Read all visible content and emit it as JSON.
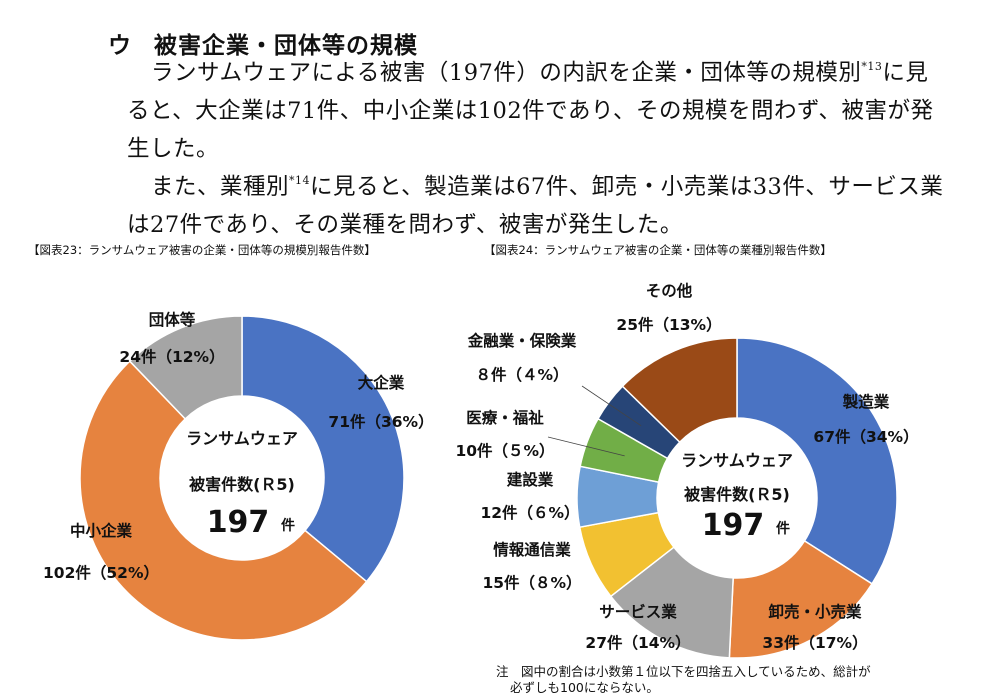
{
  "heading": {
    "mark": "ウ",
    "text": "被害企業・団体等の規模"
  },
  "paragraph_1": {
    "before_ref": "ランサムウェアによる被害（197件）の内訳を企業・団体等の規模別",
    "ref": "*13",
    "after_ref": "に見ると、大企業は71件、中小企業は102件であり、その規模を問わず、被害が発生した。"
  },
  "paragraph_2": {
    "before_ref": "また、業種別",
    "ref": "*14",
    "after_ref": "に見ると、製造業は67件、卸売・小売業は33件、サービス業は27件であり、その業種を問わず、被害が発生した。"
  },
  "chart_data": [
    {
      "type": "pie",
      "title": "【図表23：ランサムウェア被害の企業・団体等の規模別報告件数】",
      "center_lines": [
        "ランサムウェア",
        "被害件数(Ｒ5)"
      ],
      "center_total": "197",
      "center_unit": "件",
      "slices": [
        {
          "label": "大企業",
          "count": 71,
          "value_label": "71件（36%）",
          "color": "#4a73c3"
        },
        {
          "label": "中小企業",
          "count": 102,
          "value_label": "102件（52%）",
          "color": "#e6833f"
        },
        {
          "label": "団体等",
          "count": 24,
          "value_label": "24件（12%）",
          "color": "#a5a5a5"
        }
      ]
    },
    {
      "type": "pie",
      "title": "【図表24：ランサムウェア被害の企業・団体等の業種別報告件数】",
      "center_lines": [
        "ランサムウェア",
        "被害件数(Ｒ5)"
      ],
      "center_total": "197",
      "center_unit": "件",
      "slices": [
        {
          "label": "製造業",
          "count": 67,
          "value_label": "67件（34%）",
          "color": "#4a73c3"
        },
        {
          "label": "卸売・小売業",
          "count": 33,
          "value_label": "33件（17%）",
          "color": "#e6833f"
        },
        {
          "label": "サービス業",
          "count": 27,
          "value_label": "27件（14%）",
          "color": "#a5a5a5"
        },
        {
          "label": "情報通信業",
          "count": 15,
          "value_label": "15件（８%）",
          "color": "#f2c131"
        },
        {
          "label": "建設業",
          "count": 12,
          "value_label": "12件（６%）",
          "color": "#6e9fd6"
        },
        {
          "label": "医療・福祉",
          "count": 10,
          "value_label": "10件（５%）",
          "color": "#71ae47"
        },
        {
          "label": "金融業・保険業",
          "count": 8,
          "value_label": "８件（４%）",
          "color": "#274577"
        },
        {
          "label": "その他",
          "count": 25,
          "value_label": "25件（13%）",
          "color": "#9a4a17"
        }
      ]
    }
  ],
  "note": {
    "label": "注",
    "line_1": "図中の割合は小数第１位以下を四捨五入しているため、総計が",
    "line_2": "必ずしも100にならない。"
  }
}
